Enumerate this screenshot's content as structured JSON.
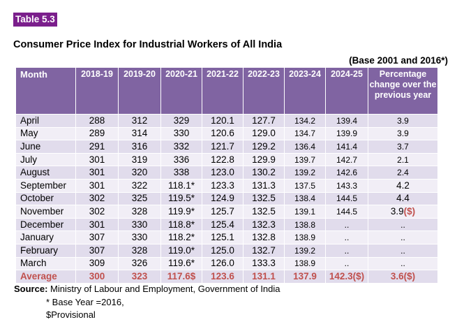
{
  "table_label": "Table 5.3",
  "title": "Consumer Price Index for Industrial Workers of All India",
  "base_note": "(Base 2001 and 2016*)",
  "headers": [
    "Month",
    "2018-19",
    "2019-20",
    "2020-21",
    "2021-22",
    "2022-23",
    "2023-24",
    "2024-25",
    "Percentage change over the previous year"
  ],
  "rows": [
    {
      "month": "April",
      "v": [
        "288",
        "312",
        "329",
        "120.1",
        "127.7",
        "134.2",
        "139.4",
        "3.9"
      ]
    },
    {
      "month": "May",
      "v": [
        "289",
        "314",
        "330",
        "120.6",
        "129.0",
        "134.7",
        "139.9",
        "3.9"
      ]
    },
    {
      "month": "June",
      "v": [
        "291",
        "316",
        "332",
        "121.7",
        "129.2",
        "136.4",
        "141.4",
        "3.7"
      ]
    },
    {
      "month": "July",
      "v": [
        "301",
        "319",
        "336",
        "122.8",
        "129.9",
        "139.7",
        "142.7",
        "2.1"
      ]
    },
    {
      "month": "August",
      "v": [
        "301",
        "320",
        "338",
        "123.0",
        "130.2",
        "139.2",
        "142.6",
        "2.4"
      ]
    },
    {
      "month": "September",
      "v": [
        "301",
        "322",
        "118.1*",
        "123.3",
        "131.3",
        "137.5",
        "143.3",
        "4.2"
      ]
    },
    {
      "month": "October",
      "v": [
        "302",
        "325",
        "119.5*",
        "124.9",
        "132.5",
        "138.4",
        "144.5",
        "4.4"
      ]
    },
    {
      "month": "November",
      "v": [
        "302",
        "328",
        "119.9*",
        "125.7",
        "132.5",
        "139.1",
        "144.5",
        "3.9"
      ]
    },
    {
      "month": "December",
      "v": [
        "301",
        "330",
        "118.8*",
        "125.4",
        "132.3",
        "138.8",
        "..",
        ".."
      ]
    },
    {
      "month": "January",
      "v": [
        "307",
        "330",
        "118.2*",
        "125.1",
        "132.8",
        "138.9",
        "..",
        ".."
      ]
    },
    {
      "month": "February",
      "v": [
        "307",
        "328",
        "119.0*",
        "125.0",
        "132.7",
        "139.2",
        "..",
        ".."
      ]
    },
    {
      "month": "March",
      "v": [
        "309",
        "326",
        "119.6*",
        "126.0",
        "133.3",
        "138.9",
        "..",
        ".."
      ]
    }
  ],
  "november_pct_suffix": "($)",
  "average": {
    "label": "Average",
    "v": [
      "300",
      "323",
      "117.6$",
      "123.6",
      "131.1",
      "137.9",
      "142.3($)",
      "3.6($)"
    ]
  },
  "source_label": "Source:",
  "source_text": " Ministry of Labour and Employment, Government of India",
  "note_base_year": "* Base Year =2016,",
  "note_provisional": "$Provisional"
}
